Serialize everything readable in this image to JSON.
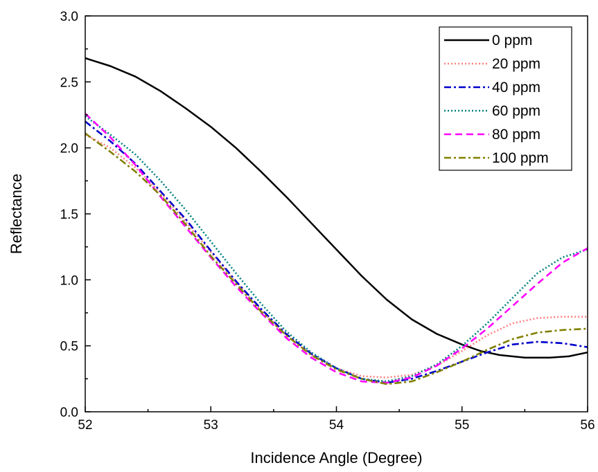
{
  "chart_data": {
    "type": "line",
    "title": "",
    "xlabel": "Incidence Angle (Degree)",
    "ylabel": "Reflectance",
    "xlim": [
      52,
      56
    ],
    "ylim": [
      0.0,
      3.0
    ],
    "xticks": [
      "52",
      "53",
      "54",
      "55",
      "56"
    ],
    "yticks": [
      "0.0",
      "0.5",
      "1.0",
      "1.5",
      "2.0",
      "2.5",
      "3.0"
    ],
    "grid": false,
    "legend_position": "top-right",
    "series": [
      {
        "name": "0 ppm",
        "color": "#000000",
        "style": "solid",
        "points": [
          [
            52.0,
            2.68
          ],
          [
            52.2,
            2.62
          ],
          [
            52.4,
            2.54
          ],
          [
            52.6,
            2.43
          ],
          [
            52.8,
            2.3
          ],
          [
            53.0,
            2.16
          ],
          [
            53.2,
            2.0
          ],
          [
            53.4,
            1.82
          ],
          [
            53.6,
            1.63
          ],
          [
            53.8,
            1.43
          ],
          [
            54.0,
            1.23
          ],
          [
            54.2,
            1.03
          ],
          [
            54.4,
            0.85
          ],
          [
            54.6,
            0.7
          ],
          [
            54.8,
            0.59
          ],
          [
            55.0,
            0.51
          ],
          [
            55.15,
            0.46
          ],
          [
            55.3,
            0.43
          ],
          [
            55.5,
            0.41
          ],
          [
            55.7,
            0.41
          ],
          [
            55.85,
            0.42
          ],
          [
            56.0,
            0.45
          ]
        ]
      },
      {
        "name": "20 ppm",
        "color": "#ff8080",
        "style": "dotted",
        "points": [
          [
            52.0,
            2.1
          ],
          [
            52.2,
            2.0
          ],
          [
            52.4,
            1.85
          ],
          [
            52.6,
            1.66
          ],
          [
            52.8,
            1.44
          ],
          [
            53.0,
            1.21
          ],
          [
            53.2,
            0.98
          ],
          [
            53.4,
            0.77
          ],
          [
            53.6,
            0.58
          ],
          [
            53.8,
            0.43
          ],
          [
            54.0,
            0.33
          ],
          [
            54.2,
            0.27
          ],
          [
            54.4,
            0.26
          ],
          [
            54.6,
            0.28
          ],
          [
            54.8,
            0.35
          ],
          [
            55.0,
            0.46
          ],
          [
            55.2,
            0.58
          ],
          [
            55.4,
            0.67
          ],
          [
            55.6,
            0.71
          ],
          [
            55.8,
            0.72
          ],
          [
            56.0,
            0.72
          ]
        ]
      },
      {
        "name": "40 ppm",
        "color": "#0000cc",
        "style": "dashdot",
        "points": [
          [
            52.0,
            2.2
          ],
          [
            52.2,
            2.05
          ],
          [
            52.4,
            1.88
          ],
          [
            52.6,
            1.67
          ],
          [
            52.8,
            1.46
          ],
          [
            53.0,
            1.22
          ],
          [
            53.2,
            0.99
          ],
          [
            53.4,
            0.78
          ],
          [
            53.6,
            0.59
          ],
          [
            53.8,
            0.44
          ],
          [
            54.0,
            0.33
          ],
          [
            54.2,
            0.25
          ],
          [
            54.4,
            0.22
          ],
          [
            54.6,
            0.25
          ],
          [
            54.8,
            0.31
          ],
          [
            55.0,
            0.38
          ],
          [
            55.2,
            0.45
          ],
          [
            55.4,
            0.51
          ],
          [
            55.6,
            0.53
          ],
          [
            55.8,
            0.52
          ],
          [
            56.0,
            0.49
          ]
        ]
      },
      {
        "name": "60 ppm",
        "color": "#008080",
        "style": "dotted",
        "points": [
          [
            52.0,
            2.24
          ],
          [
            52.2,
            2.1
          ],
          [
            52.4,
            1.95
          ],
          [
            52.6,
            1.75
          ],
          [
            52.8,
            1.53
          ],
          [
            53.0,
            1.29
          ],
          [
            53.2,
            1.05
          ],
          [
            53.4,
            0.82
          ],
          [
            53.6,
            0.61
          ],
          [
            53.8,
            0.45
          ],
          [
            54.0,
            0.33
          ],
          [
            54.2,
            0.25
          ],
          [
            54.4,
            0.23
          ],
          [
            54.6,
            0.27
          ],
          [
            54.8,
            0.36
          ],
          [
            55.0,
            0.5
          ],
          [
            55.2,
            0.67
          ],
          [
            55.4,
            0.86
          ],
          [
            55.6,
            1.05
          ],
          [
            55.8,
            1.17
          ],
          [
            56.0,
            1.23
          ]
        ]
      },
      {
        "name": "80 ppm",
        "color": "#ff00ff",
        "style": "dashed",
        "points": [
          [
            52.0,
            2.26
          ],
          [
            52.2,
            2.08
          ],
          [
            52.4,
            1.87
          ],
          [
            52.6,
            1.63
          ],
          [
            52.8,
            1.4
          ],
          [
            53.0,
            1.17
          ],
          [
            53.2,
            0.95
          ],
          [
            53.4,
            0.75
          ],
          [
            53.6,
            0.56
          ],
          [
            53.8,
            0.41
          ],
          [
            54.0,
            0.3
          ],
          [
            54.2,
            0.23
          ],
          [
            54.4,
            0.22
          ],
          [
            54.6,
            0.26
          ],
          [
            54.8,
            0.35
          ],
          [
            55.0,
            0.48
          ],
          [
            55.2,
            0.63
          ],
          [
            55.4,
            0.8
          ],
          [
            55.6,
            0.97
          ],
          [
            55.8,
            1.13
          ],
          [
            56.0,
            1.24
          ]
        ]
      },
      {
        "name": "100 ppm",
        "color": "#808000",
        "style": "dashdot",
        "points": [
          [
            52.0,
            2.11
          ],
          [
            52.2,
            1.97
          ],
          [
            52.4,
            1.82
          ],
          [
            52.6,
            1.64
          ],
          [
            52.8,
            1.42
          ],
          [
            53.0,
            1.18
          ],
          [
            53.2,
            0.97
          ],
          [
            53.4,
            0.76
          ],
          [
            53.6,
            0.58
          ],
          [
            53.8,
            0.43
          ],
          [
            54.0,
            0.32
          ],
          [
            54.2,
            0.25
          ],
          [
            54.4,
            0.21
          ],
          [
            54.6,
            0.23
          ],
          [
            54.8,
            0.3
          ],
          [
            55.0,
            0.38
          ],
          [
            55.2,
            0.47
          ],
          [
            55.4,
            0.55
          ],
          [
            55.6,
            0.6
          ],
          [
            55.8,
            0.62
          ],
          [
            56.0,
            0.63
          ]
        ]
      }
    ]
  }
}
